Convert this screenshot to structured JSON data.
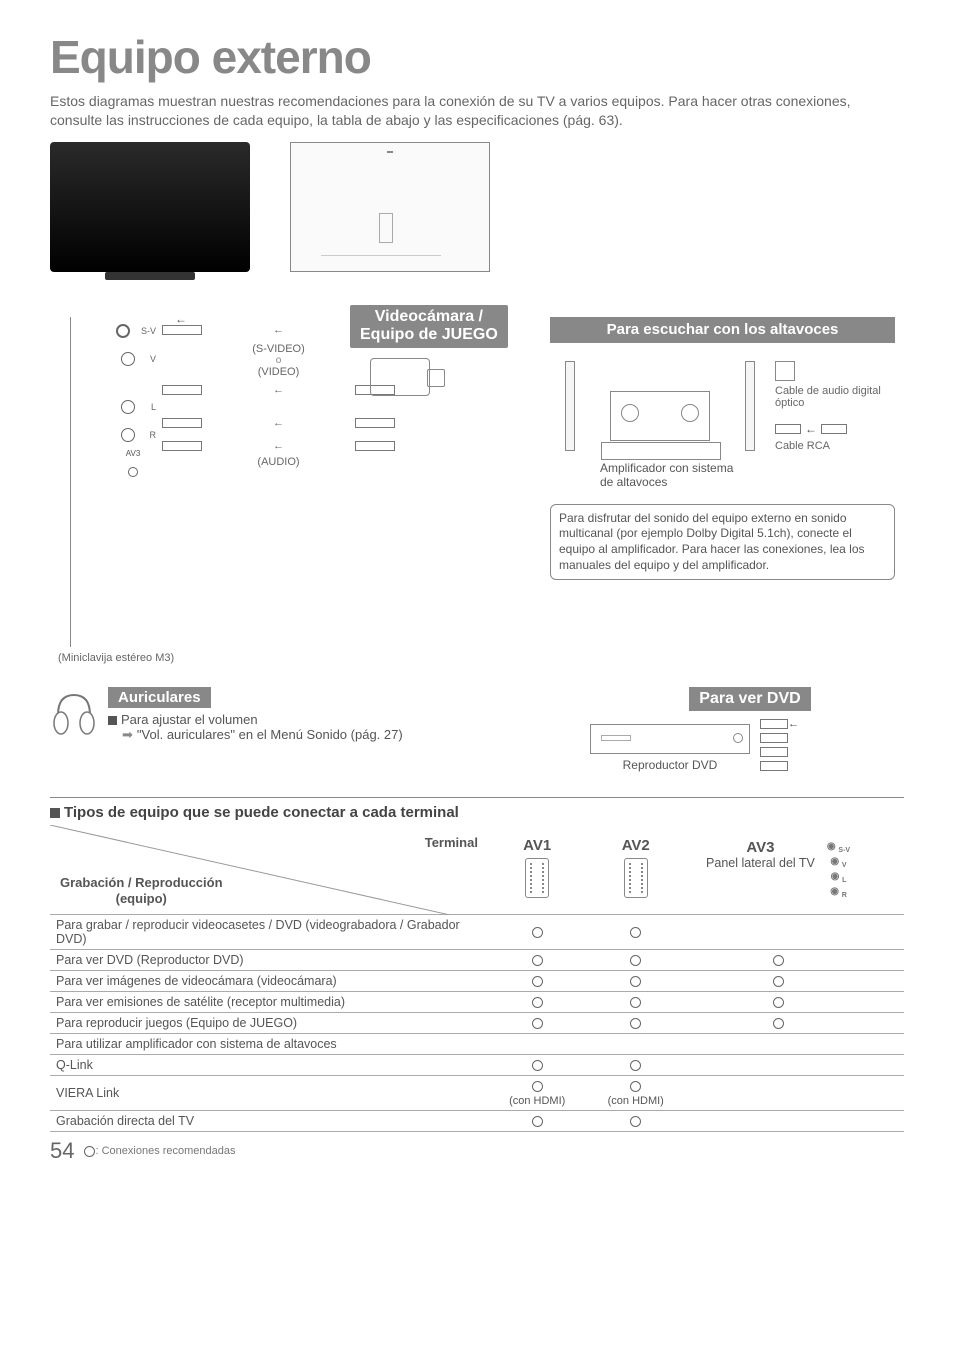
{
  "title": "Equipo externo",
  "intro": "Estos diagramas muestran nuestras recomendaciones para la conexión de su TV a varios equipos. Para hacer otras conexiones, consulte las instrucciones de cada equipo, la tabla de abajo y las especificaciones (pág. 63).",
  "side_panel": {
    "jacks": [
      "S-V",
      "V",
      "L",
      "R",
      ""
    ],
    "av3_label": "AV3",
    "cable_sv": "(S-VIDEO)",
    "cable_v": "(VIDEO)",
    "cable_audio": "(AUDIO)"
  },
  "cam_juego_title": "Videocámara /\nEquipo de JUEGO",
  "speakers": {
    "title": "Para escuchar con los altavoces",
    "optical": "Cable de audio digital óptico",
    "rca": "Cable RCA",
    "amp_caption": "Amplificador con sistema de altavoces",
    "note": "Para disfrutar del sonido del equipo externo en sonido multicanal (por ejemplo Dolby Digital 5.1ch), conecte el equipo al amplificador. Para hacer las conexiones, lea los manuales del equipo y del amplificador."
  },
  "miniclavija": "(Miniclavija estéreo M3)",
  "auriculares": {
    "title": "Auriculares",
    "line1": "Para ajustar el volumen",
    "line2": "\"Vol. auriculares\" en el Menú Sonido (pág. 27)"
  },
  "dvd": {
    "title": "Para ver DVD",
    "caption": "Reproductor DVD"
  },
  "table": {
    "heading": "Tipos de equipo que se puede conectar a cada terminal",
    "terminal_label": "Terminal",
    "rec_label": "Grabación / Reproducción\n(equipo)",
    "cols": {
      "av1": "AV1",
      "av2": "AV2",
      "av3": "AV3",
      "av3_sub": "Panel lateral del TV"
    },
    "rows": [
      {
        "label": "Para grabar / reproducir videocasetes / DVD (videograbadora / Grabador DVD)",
        "av1": "o",
        "av2": "o",
        "av3": "",
        "side": ""
      },
      {
        "label": "Para ver DVD (Reproductor DVD)",
        "av1": "o",
        "av2": "o",
        "av3": "o",
        "side": ""
      },
      {
        "label": "Para ver imágenes de videocámara (videocámara)",
        "av1": "o",
        "av2": "o",
        "av3": "o",
        "side": ""
      },
      {
        "label": "Para ver emisiones de satélite (receptor multimedia)",
        "av1": "o",
        "av2": "o",
        "av3": "o",
        "side": ""
      },
      {
        "label": "Para reproducir juegos (Equipo de JUEGO)",
        "av1": "o",
        "av2": "o",
        "av3": "o",
        "side": ""
      },
      {
        "label": "Para utilizar amplificador con sistema de altavoces",
        "av1": "",
        "av2": "",
        "av3": "",
        "side": ""
      },
      {
        "label": "Q-Link",
        "av1": "o",
        "av2": "o",
        "av3": "",
        "side": ""
      },
      {
        "label": "VIERA Link",
        "av1": "o_hdmi",
        "av2": "o_hdmi",
        "av3": "",
        "side": ""
      },
      {
        "label": "Grabación directa del TV",
        "av1": "o",
        "av2": "o",
        "av3": "",
        "side": ""
      }
    ],
    "con_hdmi": "(con HDMI)"
  },
  "page_num": "54",
  "footnote": ": Conexiones recomendadas"
}
